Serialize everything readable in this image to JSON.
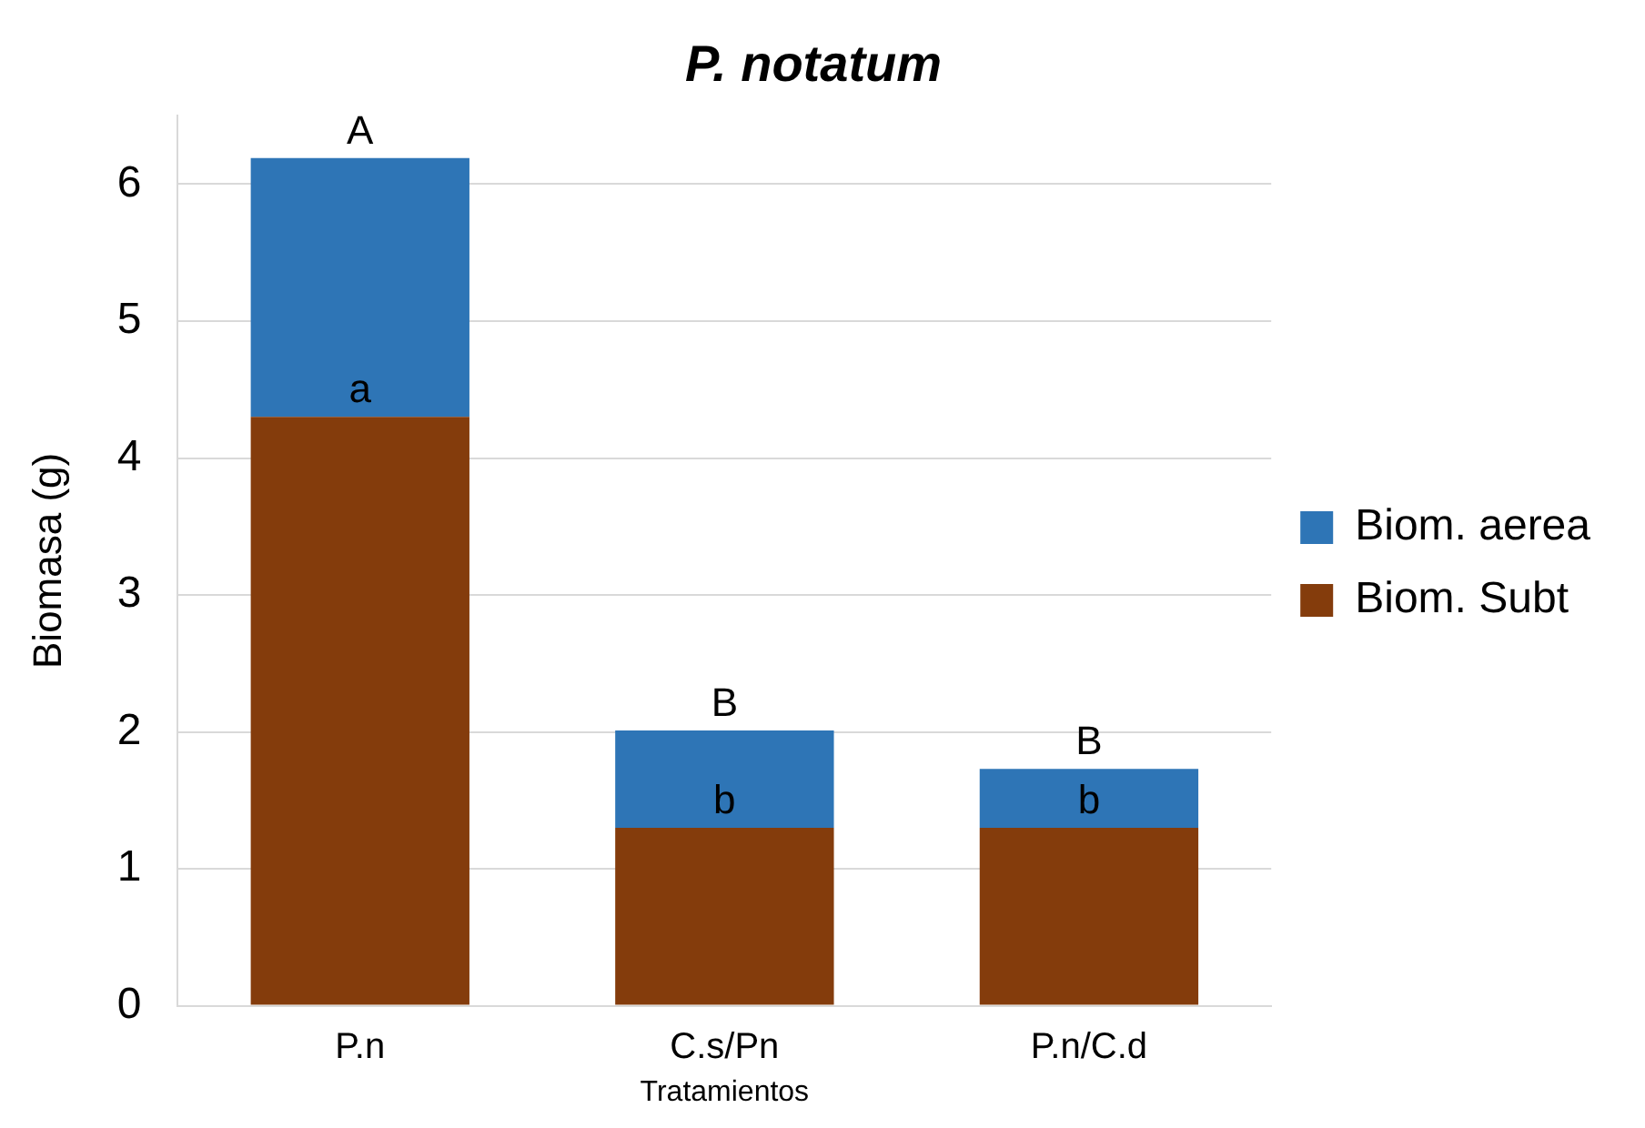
{
  "chart_data": {
    "type": "bar",
    "title": "P. notatum",
    "xlabel": "Tratamientos",
    "ylabel": "Biomasa (g)",
    "categories": [
      "P.n",
      "C.s/Pn",
      "P.n/C.d"
    ],
    "stacked": true,
    "series": [
      {
        "name": "Biom. Subt",
        "color": "#843c0c",
        "values": [
          4.3,
          1.3,
          1.3
        ]
      },
      {
        "name": "Biom. aerea",
        "color": "#2e75b6",
        "values": [
          1.89,
          0.71,
          0.43
        ]
      }
    ],
    "ylim": [
      0,
      6.5
    ],
    "yticks": [
      0,
      1,
      2,
      3,
      4,
      5,
      6
    ],
    "grid": "y",
    "legend": "right",
    "annotations": [
      {
        "text": "A",
        "x": "P.n",
        "y": 6.19
      },
      {
        "text": "a",
        "x": "P.n",
        "y": 4.3
      },
      {
        "text": "B",
        "x": "C.s/Pn",
        "y": 2.01
      },
      {
        "text": "b",
        "x": "C.s/Pn",
        "y": 1.3
      },
      {
        "text": "B",
        "x": "P.n/C.d",
        "y": 1.73
      },
      {
        "text": "b",
        "x": "P.n/C.d",
        "y": 1.3
      }
    ]
  }
}
